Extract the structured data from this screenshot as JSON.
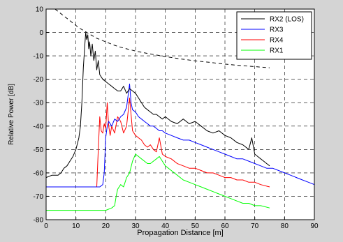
{
  "chart_data": {
    "type": "line",
    "title": "",
    "xlabel": "Propagation Distance [m]",
    "ylabel": "Relative Power [dB]",
    "xlim": [
      0,
      90
    ],
    "ylim": [
      -80,
      10
    ],
    "xticks": [
      0,
      10,
      20,
      30,
      40,
      50,
      60,
      70,
      80,
      90
    ],
    "yticks": [
      10,
      0,
      -10,
      -20,
      -30,
      -40,
      -50,
      -60,
      -70,
      -80
    ],
    "grid": true,
    "grid_style": "dashed",
    "legend_position": "top-right",
    "series": [
      {
        "name": "RX2 (LOS)",
        "color": "#000000",
        "x": [
          0,
          2,
          4,
          5,
          6,
          7,
          8,
          9,
          10,
          11,
          11.5,
          12,
          12.5,
          13,
          13.3,
          13.6,
          14,
          14.3,
          14.6,
          15,
          15.5,
          16,
          16.5,
          17,
          17.5,
          18,
          19,
          20,
          21,
          22,
          23,
          24,
          25,
          26,
          27,
          28,
          29,
          30,
          31,
          32,
          33,
          34,
          35,
          36,
          37,
          38,
          39,
          40,
          42,
          44,
          46,
          48,
          50,
          52,
          54,
          56,
          58,
          60,
          62,
          64,
          66,
          68,
          69,
          70,
          71,
          72,
          73,
          74,
          75
        ],
        "y": [
          -62,
          -61,
          -61,
          -60,
          -58,
          -57,
          -55,
          -53,
          -50,
          -45,
          -40,
          -30,
          -15,
          -5,
          0,
          -3,
          -1,
          -7,
          -4,
          -10,
          -5,
          -12,
          -8,
          -16,
          -12,
          -18,
          -20,
          -21,
          -22,
          -23,
          -24,
          -25,
          -25,
          -23,
          -26,
          -24,
          -25,
          -26,
          -28,
          -30,
          -32,
          -33,
          -34,
          -35,
          -35,
          -36,
          -37,
          -36,
          -38,
          -39,
          -37,
          -39,
          -38,
          -40,
          -42,
          -43,
          -42,
          -44,
          -45,
          -47,
          -48,
          -50,
          -45,
          -52,
          -53,
          -54,
          -55,
          -56,
          -57
        ]
      },
      {
        "name": "RX3",
        "color": "#0000ff",
        "x": [
          0,
          5,
          10,
          15,
          18,
          19,
          19.5,
          20,
          20.5,
          21,
          22,
          23,
          24,
          25,
          26,
          27,
          28,
          28.5,
          29,
          30,
          31,
          32,
          33,
          34,
          35,
          36,
          37,
          38,
          39,
          40,
          42,
          44,
          46,
          48,
          50,
          52,
          54,
          56,
          58,
          60,
          62,
          64,
          66,
          68,
          70,
          72,
          74,
          76,
          78,
          80,
          82,
          84,
          86,
          88,
          90
        ],
        "y": [
          -66,
          -66,
          -66,
          -66,
          -66,
          -65,
          -60,
          -45,
          -40,
          -38,
          -40,
          -37,
          -38,
          -36,
          -35,
          -32,
          -22,
          -30,
          -33,
          -34,
          -36,
          -37,
          -38,
          -39,
          -40,
          -40,
          -41,
          -42,
          -42,
          -43,
          -44,
          -45,
          -46,
          -46,
          -47,
          -48,
          -49,
          -50,
          -51,
          -52,
          -53,
          -54,
          -54,
          -55,
          -56,
          -57,
          -58,
          -58,
          -59,
          -60,
          -61,
          -62,
          -63,
          -64,
          -65
        ]
      },
      {
        "name": "RX4",
        "color": "#ff0000",
        "x": [
          0,
          5,
          10,
          15,
          17,
          17.5,
          18,
          18.5,
          19,
          19.5,
          20,
          20.5,
          21,
          21.5,
          22,
          23,
          24,
          25,
          26,
          27,
          28,
          29,
          30,
          31,
          32,
          33,
          34,
          35,
          36,
          37,
          38,
          39,
          40,
          42,
          44,
          46,
          48,
          50,
          52,
          54,
          56,
          58,
          60,
          62,
          64,
          66,
          68,
          70,
          72,
          75
        ],
        "y": [
          -66,
          -66,
          -66,
          -66,
          -66,
          -50,
          -36,
          -42,
          -43,
          -39,
          -41,
          -30,
          -40,
          -44,
          -40,
          -43,
          -36,
          -38,
          -43,
          -40,
          -28,
          -42,
          -44,
          -45,
          -46,
          -48,
          -49,
          -48,
          -50,
          -51,
          -45,
          -52,
          -53,
          -54,
          -56,
          -57,
          -58,
          -58,
          -59,
          -60,
          -60,
          -61,
          -62,
          -62,
          -63,
          -63,
          -64,
          -64,
          -65,
          -66
        ]
      },
      {
        "name": "RX1",
        "color": "#00ff00",
        "x": [
          0,
          5,
          10,
          15,
          20,
          22,
          23,
          23.5,
          24,
          25,
          26,
          27,
          28,
          29,
          30,
          31,
          32,
          33,
          34,
          35,
          36,
          37,
          38,
          39,
          40,
          42,
          44,
          46,
          48,
          50,
          52,
          54,
          56,
          58,
          60,
          62,
          64,
          66,
          68,
          70,
          72,
          75
        ],
        "y": [
          -76,
          -76,
          -76,
          -76,
          -76,
          -75,
          -74,
          -70,
          -67,
          -65,
          -66,
          -62,
          -60,
          -55,
          -52,
          -53,
          -54,
          -55,
          -56,
          -56,
          -55,
          -54,
          -53,
          -55,
          -57,
          -59,
          -61,
          -63,
          -64,
          -65,
          -66,
          -67,
          -68,
          -69,
          -70,
          -71,
          -72,
          -73,
          -73,
          -74,
          -74,
          -75
        ]
      },
      {
        "name": "",
        "color": "#000000",
        "dashed": true,
        "x": [
          3,
          5,
          7,
          9,
          11,
          13,
          15,
          17,
          19,
          21,
          23,
          25,
          28,
          31,
          35,
          40,
          45,
          50,
          55,
          60,
          65,
          70,
          75
        ],
        "y": [
          10,
          8,
          6,
          4,
          2,
          0.5,
          -1,
          -2.5,
          -3.5,
          -4.5,
          -5.5,
          -6.3,
          -7.3,
          -8.2,
          -9.2,
          -10.3,
          -11.3,
          -12.1,
          -12.8,
          -13.5,
          -14.1,
          -14.6,
          -15.1
        ]
      }
    ]
  }
}
